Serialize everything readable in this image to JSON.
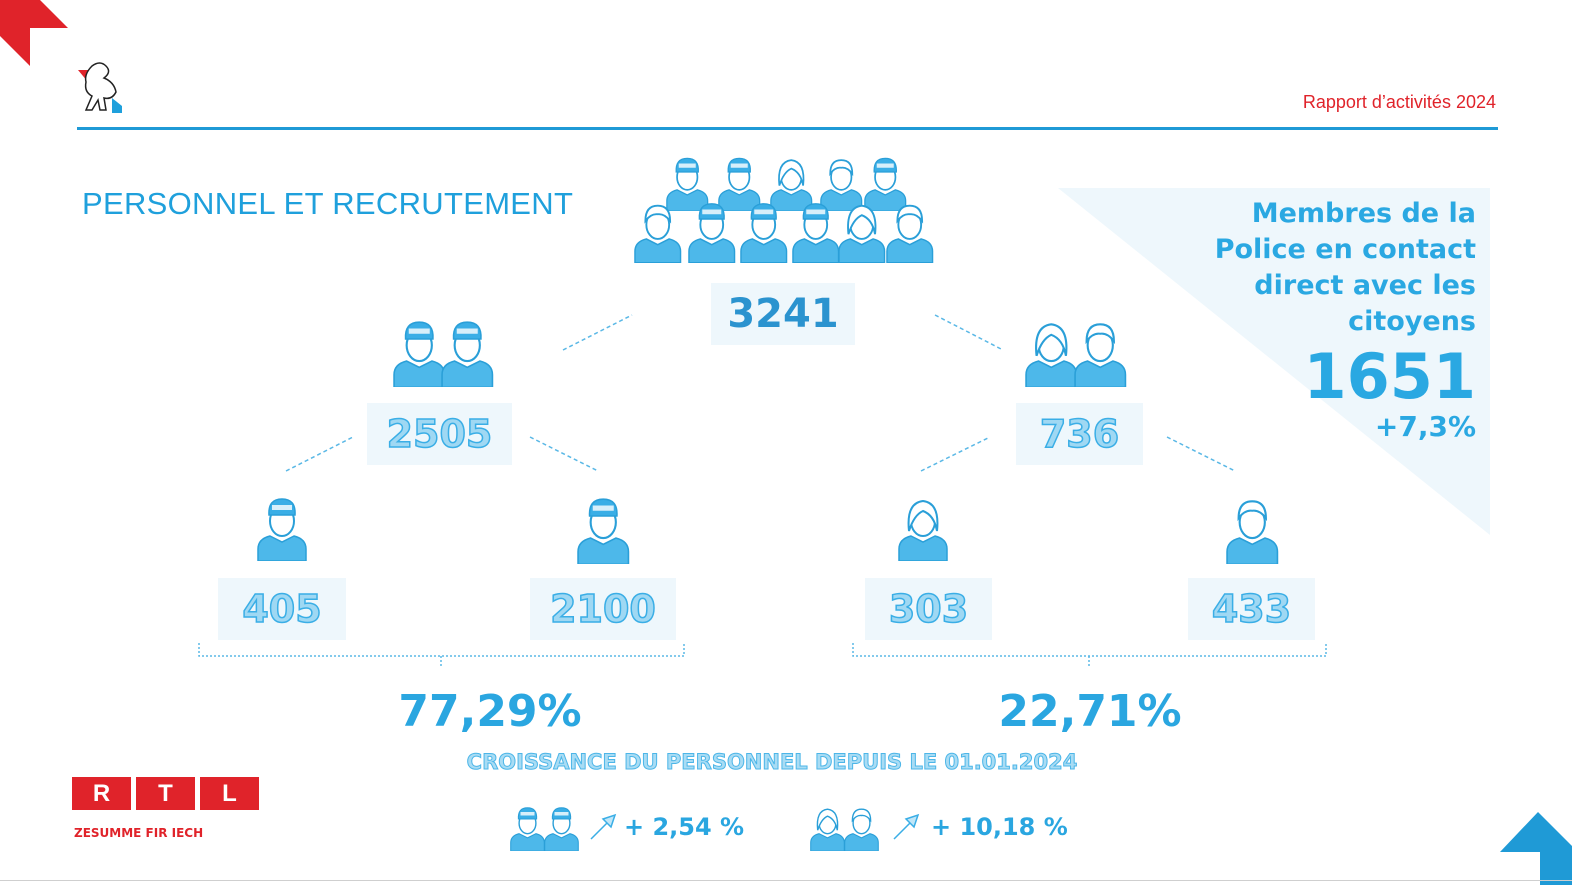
{
  "header": {
    "report_title": "Rapport d’activités 2024"
  },
  "colors": {
    "accent_blue": "#1f9ad6",
    "accent_red": "#e0232a",
    "icon_blue": "#4db8ea"
  },
  "section_title": "PERSONNEL ET RECRUTEMENT",
  "total": {
    "value": "3241",
    "icons": [
      "police",
      "police",
      "woman",
      "man",
      "police",
      "man",
      "police",
      "police",
      "police",
      "woman",
      "man"
    ]
  },
  "police": {
    "value": "2505",
    "icons": [
      "police",
      "police"
    ],
    "civilian_police_women": {
      "value": "405",
      "icon": "police"
    },
    "civilian_police_men": {
      "value": "2100",
      "icon": "police"
    },
    "share": "77,29%"
  },
  "civil": {
    "value": "736",
    "icons": [
      "woman",
      "man"
    ],
    "women": {
      "value": "303",
      "icon": "woman"
    },
    "men": {
      "value": "433",
      "icon": "man"
    },
    "share": "22,71%"
  },
  "callout": {
    "lines": [
      "Membres de la",
      "Police en contact",
      "direct avec les",
      "citoyens"
    ],
    "value": "1651",
    "delta": "+7,3%"
  },
  "growth": {
    "title": "CROISSANCE DU PERSONNEL DEPUIS LE 01.01.2024",
    "items": [
      {
        "icons": [
          "police",
          "police"
        ],
        "icon": "arrow-up-right-icon",
        "value": "+ 2,54 %"
      },
      {
        "icons": [
          "woman",
          "man"
        ],
        "icon": "arrow-up-right-icon",
        "value": "+ 10,18 %"
      }
    ]
  },
  "rtl": {
    "letters": [
      "R",
      "T",
      "L"
    ],
    "tagline": "ZESUMME FIR IECH"
  }
}
